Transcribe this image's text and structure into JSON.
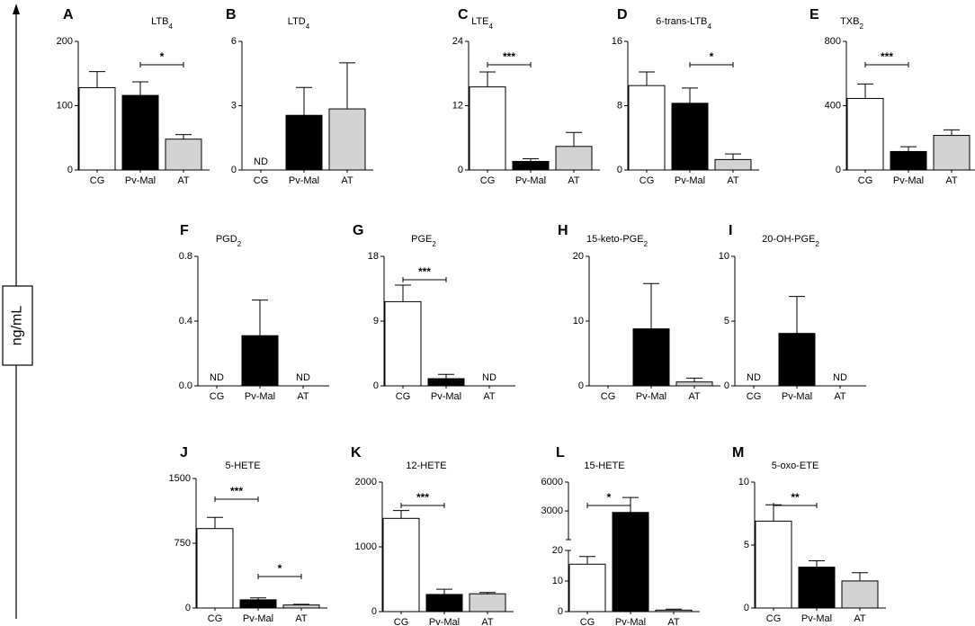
{
  "figure": {
    "ylabel": "ng/mL",
    "categories": [
      "CG",
      "Pv-Mal",
      "AT"
    ],
    "colors": {
      "CG": "#ffffff",
      "Pv-Mal": "#000000",
      "AT": "#d3d3d3",
      "stroke": "#000000"
    }
  },
  "chart_data": [
    {
      "type": "bar",
      "panel": "A",
      "title_base": "LTB",
      "title_sub": "4",
      "categories": [
        "CG",
        "Pv-Mal",
        "AT"
      ],
      "values": [
        128,
        116,
        48
      ],
      "errors": [
        25,
        21,
        7
      ],
      "nd": [
        false,
        false,
        false
      ],
      "ylim": [
        0,
        200
      ],
      "ticks": [
        0,
        100,
        200
      ],
      "tick_labels": [
        "0",
        "100",
        "200"
      ],
      "significance": [
        {
          "from": 1,
          "to": 2,
          "label": "*"
        }
      ]
    },
    {
      "type": "bar",
      "panel": "B",
      "title_base": "LTD",
      "title_sub": "4",
      "categories": [
        "CG",
        "Pv-Mal",
        "AT"
      ],
      "values": [
        0,
        2.55,
        2.85
      ],
      "errors": [
        0,
        1.3,
        2.15
      ],
      "nd": [
        true,
        false,
        false
      ],
      "ylim": [
        0,
        6
      ],
      "ticks": [
        0,
        3,
        6
      ],
      "tick_labels": [
        "0",
        "3",
        "6"
      ],
      "nd_label": "ND",
      "significance": []
    },
    {
      "type": "bar",
      "panel": "C",
      "title_base": "LTE",
      "title_sub": "4",
      "categories": [
        "CG",
        "Pv-Mal",
        "AT"
      ],
      "values": [
        15.5,
        1.6,
        4.4
      ],
      "errors": [
        2.8,
        0.5,
        2.6
      ],
      "nd": [
        false,
        false,
        false
      ],
      "ylim": [
        0,
        24
      ],
      "ticks": [
        0,
        12,
        24
      ],
      "tick_labels": [
        "0",
        "12",
        "24"
      ],
      "significance": [
        {
          "from": 0,
          "to": 1,
          "label": "***"
        }
      ]
    },
    {
      "type": "bar",
      "panel": "D",
      "title_base": "6-trans-LTB",
      "title_sub": "4",
      "categories": [
        "CG",
        "Pv-Mal",
        "AT"
      ],
      "values": [
        10.5,
        8.3,
        1.3
      ],
      "errors": [
        1.7,
        1.9,
        0.7
      ],
      "nd": [
        false,
        false,
        false
      ],
      "ylim": [
        0,
        16
      ],
      "ticks": [
        0,
        8,
        16
      ],
      "tick_labels": [
        "0",
        "8",
        "16"
      ],
      "significance": [
        {
          "from": 1,
          "to": 2,
          "label": "*"
        }
      ]
    },
    {
      "type": "bar",
      "panel": "E",
      "title_base": "TXB",
      "title_sub": "2",
      "categories": [
        "CG",
        "Pv-Mal",
        "AT"
      ],
      "values": [
        445,
        115,
        215
      ],
      "errors": [
        90,
        30,
        35
      ],
      "nd": [
        false,
        false,
        false
      ],
      "ylim": [
        0,
        800
      ],
      "ticks": [
        0,
        400,
        800
      ],
      "tick_labels": [
        "0",
        "400",
        "800"
      ],
      "significance": [
        {
          "from": 0,
          "to": 1,
          "label": "***"
        }
      ]
    },
    {
      "type": "bar",
      "panel": "F",
      "title_base": "PGD",
      "title_sub": "2",
      "categories": [
        "CG",
        "Pv-Mal",
        "AT"
      ],
      "values": [
        0,
        0.31,
        0
      ],
      "errors": [
        0,
        0.22,
        0
      ],
      "nd": [
        true,
        false,
        true
      ],
      "ylim": [
        0,
        0.8
      ],
      "ticks": [
        0,
        0.4,
        0.8
      ],
      "tick_labels": [
        "0.0",
        "0.4",
        "0.8"
      ],
      "nd_label": "ND",
      "significance": []
    },
    {
      "type": "bar",
      "panel": "G",
      "title_base": "PGE",
      "title_sub": "2",
      "categories": [
        "CG",
        "Pv-Mal",
        "AT"
      ],
      "values": [
        11.7,
        1.0,
        0
      ],
      "errors": [
        2.3,
        0.6,
        0
      ],
      "nd": [
        false,
        false,
        true
      ],
      "ylim": [
        0,
        18
      ],
      "ticks": [
        0,
        9,
        18
      ],
      "tick_labels": [
        "0",
        "9",
        "18"
      ],
      "nd_label": "ND",
      "significance": [
        {
          "from": 0,
          "to": 1,
          "label": "***"
        }
      ]
    },
    {
      "type": "bar",
      "panel": "H",
      "title_base": "15-keto-PGE",
      "title_sub": "2",
      "categories": [
        "CG",
        "Pv-Mal",
        "AT"
      ],
      "values": [
        0,
        8.8,
        0.6
      ],
      "errors": [
        0,
        7.0,
        0.6
      ],
      "nd": [
        false,
        false,
        false
      ],
      "ylim": [
        0,
        20
      ],
      "ticks": [
        0,
        10,
        20
      ],
      "tick_labels": [
        "0",
        "10",
        "20"
      ],
      "significance": []
    },
    {
      "type": "bar",
      "panel": "I",
      "title_base": "20-OH-PGE",
      "title_sub": "2",
      "categories": [
        "CG",
        "Pv-Mal",
        "AT"
      ],
      "values": [
        0,
        4.05,
        0
      ],
      "errors": [
        0,
        2.85,
        0
      ],
      "nd": [
        true,
        false,
        true
      ],
      "ylim": [
        0,
        10
      ],
      "ticks": [
        0,
        5,
        10
      ],
      "tick_labels": [
        "0",
        "5",
        "10"
      ],
      "nd_label": "ND",
      "significance": []
    },
    {
      "type": "bar",
      "panel": "J",
      "title_base": "5-HETE",
      "title_sub": "",
      "categories": [
        "CG",
        "Pv-Mal",
        "AT"
      ],
      "values": [
        920,
        95,
        35
      ],
      "errors": [
        130,
        22,
        8
      ],
      "nd": [
        false,
        false,
        false
      ],
      "ylim": [
        0,
        1500
      ],
      "ticks": [
        0,
        750,
        1500
      ],
      "tick_labels": [
        "0",
        "750",
        "1500"
      ],
      "significance": [
        {
          "from": 0,
          "to": 1,
          "label": "***"
        },
        {
          "from": 1,
          "to": 2,
          "label": "*"
        }
      ]
    },
    {
      "type": "bar",
      "panel": "K",
      "title_base": "12-HETE",
      "title_sub": "",
      "categories": [
        "CG",
        "Pv-Mal",
        "AT"
      ],
      "values": [
        1440,
        265,
        275
      ],
      "errors": [
        120,
        80,
        20
      ],
      "nd": [
        false,
        false,
        false
      ],
      "ylim": [
        0,
        2000
      ],
      "ticks": [
        0,
        1000,
        2000
      ],
      "tick_labels": [
        "0",
        "1000",
        "2000"
      ],
      "significance": [
        {
          "from": 0,
          "to": 1,
          "label": "***"
        }
      ]
    },
    {
      "type": "bar",
      "panel": "L",
      "title_base": "15-HETE",
      "title_sub": "",
      "categories": [
        "CG",
        "Pv-Mal",
        "AT"
      ],
      "values": [
        15.5,
        2850,
        0.5
      ],
      "errors": [
        2.5,
        1550,
        0.3
      ],
      "nd": [
        false,
        false,
        false
      ],
      "broken_axis": {
        "lower_range": [
          0,
          20
        ],
        "upper_range": [
          20,
          6000
        ]
      },
      "ticks": [
        0,
        10,
        20,
        3000,
        6000
      ],
      "tick_labels": [
        "0",
        "10",
        "20",
        "3000",
        "6000"
      ],
      "significance": [
        {
          "from": 0,
          "to": 1,
          "label": "*"
        }
      ]
    },
    {
      "type": "bar",
      "panel": "M",
      "title_base": "5-oxo-ETE",
      "title_sub": "",
      "categories": [
        "CG",
        "Pv-Mal",
        "AT"
      ],
      "values": [
        6.9,
        3.25,
        2.15
      ],
      "errors": [
        1.3,
        0.5,
        0.65
      ],
      "nd": [
        false,
        false,
        false
      ],
      "ylim": [
        0,
        10
      ],
      "ticks": [
        0,
        5,
        10
      ],
      "tick_labels": [
        "0",
        "5",
        "10"
      ],
      "significance": [
        {
          "from": 0,
          "to": 1,
          "label": "**"
        }
      ]
    }
  ]
}
